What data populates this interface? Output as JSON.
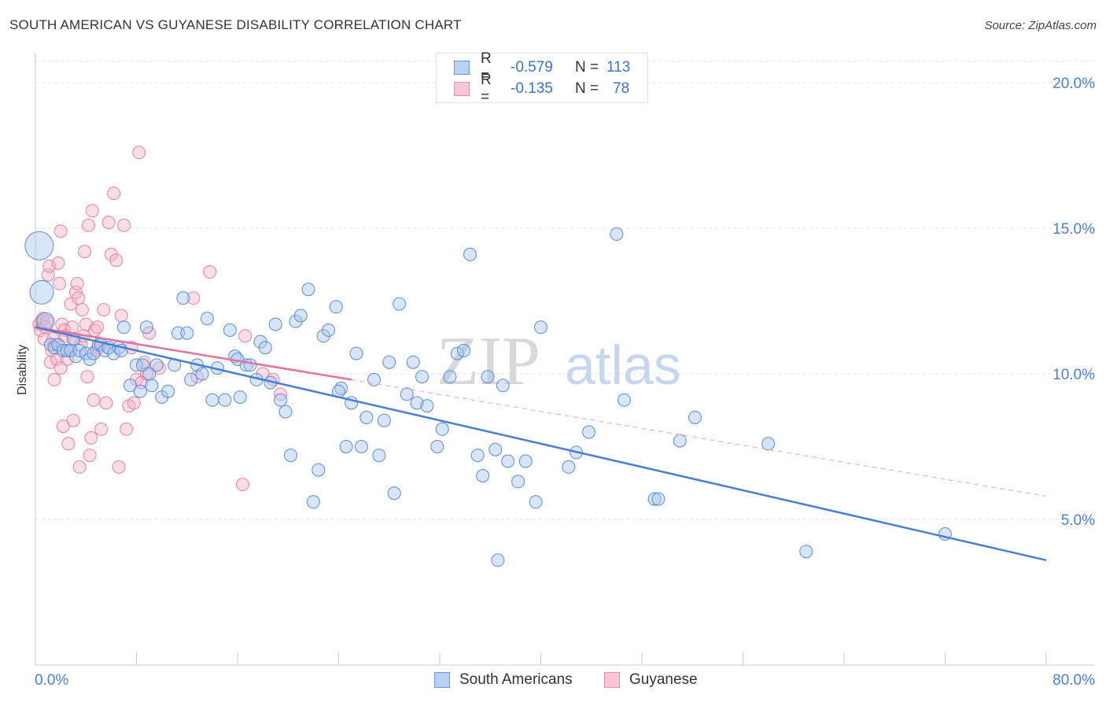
{
  "header": {
    "title": "SOUTH AMERICAN VS GUYANESE DISABILITY CORRELATION CHART",
    "source": "Source: ZipAtlas.com"
  },
  "legend": {
    "rows": [
      {
        "r_label": "R =",
        "r_value": "-0.579",
        "n_label": "N =",
        "n_value": "113"
      },
      {
        "r_label": "R =",
        "r_value": "-0.135",
        "n_label": "N =",
        "n_value": "78"
      }
    ]
  },
  "colors": {
    "blue": "#4a7fd4",
    "blue_fill": "#a9c6ef",
    "pink": "#e8709a",
    "pink_fill": "#f5b3c8",
    "grid": "#e3e3e3"
  },
  "chart_data": {
    "type": "scatter",
    "title": "SOUTH AMERICAN VS GUYANESE DISABILITY CORRELATION CHART",
    "xlabel": "",
    "ylabel": "Disability",
    "xlim": [
      0,
      80
    ],
    "ylim": [
      0,
      21
    ],
    "x_tick_labels": [
      "0.0%",
      "80.0%"
    ],
    "y_ticks": [
      5,
      10,
      15,
      20
    ],
    "y_tick_labels": [
      "5.0%",
      "10.0%",
      "15.0%",
      "20.0%"
    ],
    "grid": true,
    "legend_position": "top-center",
    "watermark": "ZIPatlas",
    "series": [
      {
        "name": "South Americans",
        "color": "#4a7fd4",
        "trend": {
          "x": [
            0,
            80
          ],
          "y": [
            11.6,
            3.6
          ],
          "style": "solid"
        },
        "points": [
          [
            0.3,
            14.4
          ],
          [
            0.5,
            12.8
          ],
          [
            0.8,
            11.8
          ],
          [
            1.2,
            11.0
          ],
          [
            1.5,
            10.9
          ],
          [
            1.8,
            11.0
          ],
          [
            2.2,
            10.8
          ],
          [
            2.5,
            10.8
          ],
          [
            2.8,
            10.8
          ],
          [
            3.2,
            10.6
          ],
          [
            3.5,
            10.8
          ],
          [
            4.0,
            10.7
          ],
          [
            4.3,
            10.5
          ],
          [
            4.6,
            10.7
          ],
          [
            5.0,
            11.0
          ],
          [
            5.2,
            11.0
          ],
          [
            5.5,
            10.8
          ],
          [
            5.8,
            10.9
          ],
          [
            6.2,
            10.7
          ],
          [
            6.6,
            10.9
          ],
          [
            7.0,
            11.6
          ],
          [
            7.5,
            9.6
          ],
          [
            8.0,
            10.3
          ],
          [
            8.3,
            9.4
          ],
          [
            8.5,
            10.3
          ],
          [
            8.8,
            11.6
          ],
          [
            9.2,
            9.6
          ],
          [
            9.6,
            10.3
          ],
          [
            10.0,
            9.2
          ],
          [
            10.5,
            9.4
          ],
          [
            11.0,
            10.3
          ],
          [
            11.3,
            11.4
          ],
          [
            11.7,
            12.6
          ],
          [
            12.0,
            11.4
          ],
          [
            12.3,
            9.8
          ],
          [
            12.8,
            10.3
          ],
          [
            13.2,
            10.0
          ],
          [
            13.6,
            11.9
          ],
          [
            14.0,
            9.1
          ],
          [
            14.4,
            10.2
          ],
          [
            15.0,
            9.1
          ],
          [
            15.4,
            11.5
          ],
          [
            15.8,
            10.6
          ],
          [
            16.2,
            9.2
          ],
          [
            16.7,
            10.3
          ],
          [
            17.0,
            10.3
          ],
          [
            17.5,
            9.8
          ],
          [
            17.8,
            11.1
          ],
          [
            18.2,
            10.9
          ],
          [
            18.6,
            9.7
          ],
          [
            19.0,
            11.7
          ],
          [
            19.4,
            9.1
          ],
          [
            19.8,
            8.7
          ],
          [
            20.2,
            7.2
          ],
          [
            20.6,
            11.8
          ],
          [
            21.0,
            12.0
          ],
          [
            21.6,
            12.9
          ],
          [
            22.0,
            5.6
          ],
          [
            22.4,
            6.7
          ],
          [
            22.8,
            11.3
          ],
          [
            23.2,
            11.5
          ],
          [
            23.8,
            12.3
          ],
          [
            24.2,
            9.5
          ],
          [
            24.6,
            7.5
          ],
          [
            25.0,
            9.0
          ],
          [
            25.4,
            10.7
          ],
          [
            25.8,
            7.5
          ],
          [
            26.2,
            8.5
          ],
          [
            26.8,
            9.8
          ],
          [
            27.2,
            7.2
          ],
          [
            27.6,
            8.4
          ],
          [
            28.0,
            10.4
          ],
          [
            28.4,
            5.9
          ],
          [
            28.8,
            12.4
          ],
          [
            29.4,
            9.3
          ],
          [
            29.9,
            10.4
          ],
          [
            30.2,
            9.0
          ],
          [
            30.6,
            9.9
          ],
          [
            31.0,
            8.9
          ],
          [
            31.8,
            7.5
          ],
          [
            32.2,
            8.1
          ],
          [
            32.8,
            9.9
          ],
          [
            33.4,
            10.7
          ],
          [
            33.9,
            10.8
          ],
          [
            34.4,
            14.1
          ],
          [
            35.0,
            7.2
          ],
          [
            35.4,
            6.5
          ],
          [
            35.8,
            9.9
          ],
          [
            36.4,
            7.4
          ],
          [
            37.0,
            9.6
          ],
          [
            37.4,
            7.0
          ],
          [
            38.2,
            6.3
          ],
          [
            38.8,
            7.0
          ],
          [
            39.6,
            5.6
          ],
          [
            40.0,
            11.6
          ],
          [
            42.2,
            6.8
          ],
          [
            42.8,
            7.3
          ],
          [
            43.8,
            8.0
          ],
          [
            46.0,
            14.8
          ],
          [
            46.6,
            9.1
          ],
          [
            49.0,
            5.7
          ],
          [
            49.3,
            5.7
          ],
          [
            51.0,
            7.7
          ],
          [
            52.2,
            8.5
          ],
          [
            58.0,
            7.6
          ],
          [
            61.0,
            3.9
          ],
          [
            72.0,
            4.5
          ],
          [
            36.6,
            3.6
          ],
          [
            24.0,
            9.4
          ],
          [
            16.0,
            10.5
          ],
          [
            6.8,
            10.8
          ],
          [
            3.0,
            11.2
          ],
          [
            9.0,
            10.0
          ]
        ]
      },
      {
        "name": "Guyanese",
        "color": "#e8709a",
        "trend": {
          "x": [
            0,
            25
          ],
          "y": [
            11.6,
            9.8
          ],
          "style": "solid"
        },
        "trend_extension": {
          "x": [
            25,
            80
          ],
          "y": [
            9.8,
            5.8
          ],
          "style": "dashed"
        },
        "points": [
          [
            0.3,
            11.7
          ],
          [
            0.4,
            11.5
          ],
          [
            0.5,
            11.8
          ],
          [
            0.6,
            11.9
          ],
          [
            0.7,
            11.2
          ],
          [
            0.8,
            11.6
          ],
          [
            0.9,
            11.8
          ],
          [
            1.0,
            13.4
          ],
          [
            1.1,
            13.7
          ],
          [
            1.2,
            10.4
          ],
          [
            1.3,
            10.8
          ],
          [
            1.4,
            11.2
          ],
          [
            1.5,
            9.8
          ],
          [
            1.6,
            11.0
          ],
          [
            1.7,
            10.5
          ],
          [
            1.8,
            13.8
          ],
          [
            1.9,
            13.1
          ],
          [
            2.0,
            14.9
          ],
          [
            2.1,
            11.7
          ],
          [
            2.2,
            8.2
          ],
          [
            2.3,
            11.5
          ],
          [
            2.4,
            11.3
          ],
          [
            2.5,
            10.5
          ],
          [
            2.6,
            7.6
          ],
          [
            2.7,
            10.8
          ],
          [
            2.8,
            12.4
          ],
          [
            2.9,
            11.6
          ],
          [
            3.0,
            8.4
          ],
          [
            3.1,
            11.2
          ],
          [
            3.2,
            12.8
          ],
          [
            3.3,
            13.1
          ],
          [
            3.4,
            12.6
          ],
          [
            3.5,
            6.8
          ],
          [
            3.6,
            11.0
          ],
          [
            3.7,
            12.2
          ],
          [
            3.8,
            11.3
          ],
          [
            3.9,
            14.2
          ],
          [
            4.0,
            11.7
          ],
          [
            4.1,
            9.9
          ],
          [
            4.2,
            15.1
          ],
          [
            4.3,
            7.2
          ],
          [
            4.4,
            7.8
          ],
          [
            4.5,
            15.6
          ],
          [
            4.6,
            9.1
          ],
          [
            4.7,
            11.5
          ],
          [
            4.8,
            10.8
          ],
          [
            4.9,
            11.6
          ],
          [
            5.0,
            10.9
          ],
          [
            5.2,
            8.1
          ],
          [
            5.4,
            12.2
          ],
          [
            5.6,
            9.0
          ],
          [
            5.8,
            15.2
          ],
          [
            6.0,
            14.1
          ],
          [
            6.2,
            16.2
          ],
          [
            6.4,
            13.9
          ],
          [
            6.6,
            6.8
          ],
          [
            6.8,
            12.0
          ],
          [
            7.0,
            15.1
          ],
          [
            7.2,
            8.1
          ],
          [
            7.4,
            8.9
          ],
          [
            7.6,
            10.9
          ],
          [
            7.8,
            9.0
          ],
          [
            8.0,
            9.8
          ],
          [
            8.2,
            17.6
          ],
          [
            8.4,
            9.7
          ],
          [
            8.6,
            10.4
          ],
          [
            9.0,
            11.4
          ],
          [
            9.8,
            10.2
          ],
          [
            12.5,
            12.6
          ],
          [
            12.8,
            9.9
          ],
          [
            13.8,
            13.5
          ],
          [
            16.4,
            6.2
          ],
          [
            16.6,
            11.3
          ],
          [
            18.0,
            10.0
          ],
          [
            18.8,
            9.8
          ],
          [
            19.4,
            9.3
          ],
          [
            8.8,
            10.0
          ],
          [
            2.0,
            10.2
          ]
        ]
      }
    ]
  }
}
